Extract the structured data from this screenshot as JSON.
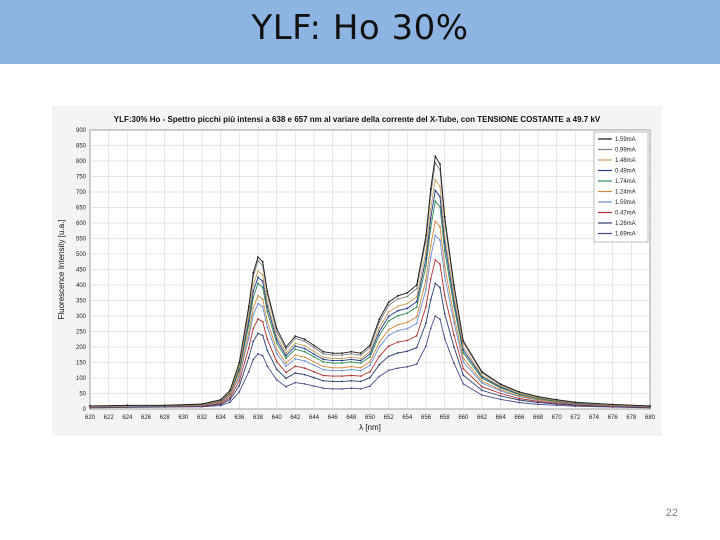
{
  "slide": {
    "title": "YLF: Ho  30%",
    "page_number": "22"
  },
  "colors": {
    "header_bg": "#8db4e2"
  },
  "chart_data": {
    "type": "line",
    "title": "YLF:30% Ho - Spettro picchi più intensi a 638 e 657 nm al variare della corrente del X-Tube, con TENSIONE COSTANTE a 49.7 kV",
    "xlabel": "λ [nm]",
    "ylabel": "Fluorescence Intensity [u.a.]",
    "xlim": [
      620,
      680
    ],
    "ylim": [
      0,
      900
    ],
    "x_ticks": [
      620,
      622,
      624,
      626,
      628,
      630,
      632,
      634,
      636,
      638,
      640,
      642,
      644,
      646,
      648,
      650,
      652,
      654,
      656,
      658,
      660,
      662,
      664,
      666,
      668,
      670,
      672,
      674,
      676,
      678,
      680
    ],
    "y_ticks": [
      0,
      50,
      100,
      150,
      200,
      250,
      300,
      350,
      400,
      450,
      500,
      550,
      600,
      650,
      700,
      750,
      800,
      850,
      900
    ],
    "grid": true,
    "legend_position": "top-right",
    "x": [
      620,
      624,
      628,
      632,
      634,
      635,
      636,
      637,
      637.5,
      638,
      638.5,
      639,
      640,
      641,
      642,
      643,
      644,
      645,
      646,
      647,
      648,
      649,
      650,
      651,
      652,
      653,
      654,
      655,
      656,
      656.5,
      657,
      657.5,
      658,
      659,
      660,
      662,
      664,
      666,
      668,
      670,
      672,
      676,
      680
    ],
    "series": [
      {
        "name": "1.59mA",
        "color": "#1a1a1a",
        "values": [
          10,
          12,
          12,
          16,
          30,
          60,
          150,
          330,
          440,
          490,
          475,
          380,
          260,
          200,
          235,
          225,
          205,
          185,
          180,
          180,
          185,
          180,
          205,
          290,
          345,
          365,
          375,
          400,
          560,
          710,
          815,
          790,
          620,
          400,
          220,
          120,
          80,
          55,
          40,
          30,
          22,
          15,
          10
        ]
      },
      {
        "name": "0.99mA",
        "color": "#808080",
        "values": [
          9,
          11,
          12,
          15,
          28,
          58,
          145,
          320,
          428,
          478,
          463,
          370,
          250,
          192,
          228,
          218,
          198,
          178,
          174,
          174,
          178,
          174,
          198,
          280,
          335,
          355,
          363,
          388,
          545,
          690,
          795,
          770,
          605,
          390,
          214,
          116,
          78,
          54,
          39,
          29,
          21,
          14,
          10
        ]
      },
      {
        "name": "1.48mA",
        "color": "#c8a05a",
        "values": [
          8,
          10,
          11,
          14,
          26,
          54,
          136,
          300,
          400,
          445,
          432,
          345,
          235,
          180,
          212,
          204,
          186,
          167,
          163,
          163,
          167,
          163,
          186,
          262,
          313,
          332,
          340,
          362,
          508,
          645,
          740,
          718,
          562,
          365,
          200,
          108,
          74,
          50,
          36,
          27,
          20,
          13,
          9
        ]
      },
      {
        "name": "0.49mA",
        "color": "#1f3a93",
        "values": [
          8,
          10,
          11,
          14,
          25,
          52,
          130,
          285,
          380,
          425,
          412,
          330,
          224,
          172,
          203,
          195,
          177,
          160,
          156,
          156,
          160,
          156,
          177,
          250,
          299,
          317,
          325,
          346,
          485,
          615,
          705,
          685,
          536,
          348,
          190,
          104,
          71,
          48,
          35,
          26,
          19,
          13,
          9
        ]
      },
      {
        "name": "1.74mA",
        "color": "#2e8b57",
        "values": [
          8,
          9,
          10,
          13,
          24,
          50,
          124,
          270,
          360,
          405,
          392,
          314,
          213,
          164,
          193,
          185,
          168,
          152,
          148,
          148,
          152,
          148,
          168,
          238,
          284,
          301,
          309,
          329,
          462,
          585,
          670,
          652,
          510,
          331,
          181,
          99,
          68,
          46,
          33,
          25,
          18,
          12,
          8
        ]
      },
      {
        "name": "1.24mA",
        "color": "#d08a3c",
        "values": [
          7,
          9,
          10,
          12,
          22,
          45,
          112,
          245,
          326,
          365,
          354,
          283,
          192,
          148,
          174,
          167,
          152,
          137,
          133,
          133,
          137,
          133,
          152,
          215,
          256,
          272,
          279,
          297,
          416,
          528,
          605,
          588,
          460,
          299,
          164,
          90,
          62,
          42,
          30,
          23,
          17,
          11,
          8
        ]
      },
      {
        "name": "1.59mA",
        "color": "#6b8ed6",
        "values": [
          7,
          8,
          9,
          12,
          21,
          42,
          104,
          228,
          304,
          340,
          330,
          264,
          179,
          138,
          162,
          155,
          141,
          127,
          124,
          124,
          127,
          124,
          141,
          200,
          238,
          253,
          259,
          276,
          387,
          490,
          560,
          545,
          428,
          278,
          152,
          84,
          58,
          40,
          29,
          22,
          16,
          11,
          7
        ]
      },
      {
        "name": "0.47mA",
        "color": "#b03030",
        "values": [
          6,
          7,
          8,
          10,
          18,
          36,
          90,
          196,
          260,
          290,
          282,
          225,
          153,
          118,
          138,
          132,
          120,
          108,
          106,
          106,
          108,
          106,
          120,
          170,
          203,
          216,
          221,
          236,
          330,
          420,
          480,
          467,
          366,
          238,
          130,
          72,
          50,
          34,
          25,
          19,
          14,
          9,
          6
        ]
      },
      {
        "name": "1.26mA",
        "color": "#2c3e70",
        "values": [
          5,
          6,
          7,
          9,
          15,
          30,
          75,
          165,
          218,
          244,
          237,
          189,
          128,
          99,
          116,
          111,
          101,
          91,
          89,
          89,
          91,
          89,
          101,
          143,
          170,
          181,
          186,
          198,
          277,
          352,
          405,
          392,
          307,
          200,
          109,
          60,
          42,
          29,
          21,
          16,
          12,
          8,
          5
        ]
      },
      {
        "name": "1.69mA",
        "color": "#4a4a8a",
        "values": [
          4,
          5,
          6,
          7,
          11,
          22,
          55,
          120,
          160,
          178,
          172,
          138,
          94,
          72,
          85,
          81,
          74,
          67,
          65,
          65,
          67,
          65,
          74,
          105,
          125,
          132,
          136,
          145,
          203,
          260,
          300,
          290,
          227,
          148,
          81,
          45,
          31,
          21,
          15,
          12,
          9,
          6,
          4
        ]
      }
    ]
  }
}
